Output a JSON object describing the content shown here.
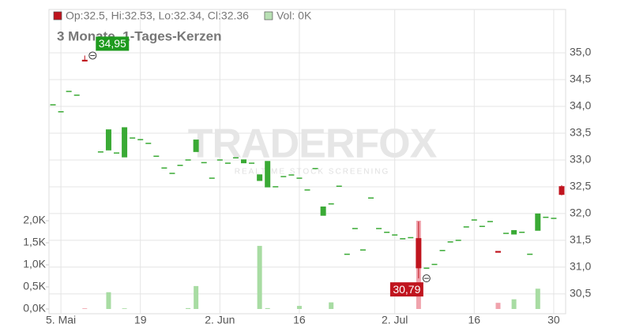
{
  "chart_data": {
    "type": "candlestick",
    "subtitle": "3 Monate, 1-Tages-Kerzen",
    "watermark": "TRADERFOX",
    "watermark_sub": "REALTIME STOCK SCREENING",
    "legend": [
      {
        "label": "Op:32.5, Hi:32.53, Lo:32.34, Cl:32.36",
        "color": "#c0141e"
      },
      {
        "label": "Vol: 0K",
        "color": "#b8e0b4"
      }
    ],
    "categories": [
      null,
      "5. Mai",
      null,
      null,
      null,
      null,
      null,
      null,
      null,
      null,
      null,
      "19",
      null,
      null,
      null,
      null,
      null,
      null,
      null,
      null,
      null,
      "2. Jun",
      null,
      null,
      null,
      null,
      null,
      null,
      null,
      null,
      null,
      "16",
      null,
      null,
      null,
      null,
      null,
      null,
      null,
      null,
      null,
      null,
      null,
      "2. Jul",
      null,
      null,
      null,
      null,
      null,
      null,
      null,
      null,
      null,
      "16",
      null,
      null,
      null,
      null,
      null,
      null,
      null,
      null,
      null,
      "30",
      null
    ],
    "open": [
      34.03,
      33.9,
      34.28,
      34.21,
      34.86,
      null,
      33.15,
      33.19,
      33.13,
      33.06,
      33.41,
      33.38,
      33.31,
      33.07,
      32.85,
      32.75,
      32.9,
      33.0,
      33.16,
      32.95,
      32.66,
      33.0,
      32.94,
      33.04,
      32.95,
      32.94,
      32.62,
      32.5,
      32.5,
      32.69,
      32.72,
      32.66,
      32.44,
      32.84,
      31.97,
      32.18,
      32.51,
      31.24,
      31.72,
      31.32,
      32.29,
      31.72,
      31.65,
      31.6,
      31.53,
      31.55,
      31.53,
      30.98,
      31.05,
      31.31,
      31.47,
      31.5,
      31.75,
      31.88,
      31.76,
      31.85,
      31.29,
      31.63,
      31.62,
      31.65,
      31.24,
      31.69,
      31.93,
      31.91,
      32.5
    ],
    "high": [
      34.03,
      33.9,
      34.28,
      34.21,
      34.95,
      null,
      33.15,
      33.56,
      33.13,
      33.6,
      33.41,
      33.38,
      33.31,
      33.07,
      32.85,
      32.75,
      32.9,
      33.0,
      33.37,
      32.95,
      32.66,
      33.0,
      32.94,
      33.04,
      33.0,
      32.94,
      32.72,
      32.97,
      32.5,
      32.69,
      32.72,
      32.66,
      32.44,
      32.84,
      32.12,
      32.18,
      32.51,
      31.24,
      31.72,
      31.32,
      32.29,
      31.72,
      31.65,
      31.6,
      31.53,
      31.55,
      31.85,
      30.98,
      31.05,
      31.31,
      31.47,
      31.5,
      31.75,
      31.88,
      31.76,
      31.85,
      31.29,
      31.63,
      31.68,
      31.65,
      31.24,
      31.99,
      31.93,
      31.91,
      32.53
    ],
    "low": [
      34.03,
      33.9,
      34.28,
      34.21,
      34.85,
      null,
      33.15,
      33.19,
      33.13,
      33.06,
      33.41,
      33.38,
      33.31,
      33.07,
      32.85,
      32.75,
      32.9,
      33.0,
      33.16,
      32.95,
      32.66,
      33.0,
      32.94,
      33.04,
      32.95,
      32.94,
      32.62,
      32.5,
      32.5,
      32.69,
      32.72,
      32.66,
      32.44,
      32.84,
      31.97,
      32.18,
      32.51,
      31.24,
      31.72,
      31.32,
      32.29,
      31.72,
      31.65,
      31.6,
      31.53,
      31.55,
      30.79,
      30.98,
      31.05,
      31.31,
      31.47,
      31.5,
      31.75,
      31.88,
      31.76,
      31.85,
      31.28,
      31.63,
      31.62,
      31.65,
      31.24,
      31.69,
      31.93,
      31.91,
      32.34
    ],
    "close": [
      34.03,
      33.9,
      34.28,
      34.21,
      34.85,
      null,
      33.15,
      33.56,
      33.13,
      33.6,
      33.41,
      33.38,
      33.31,
      33.07,
      32.85,
      32.75,
      32.9,
      33.0,
      33.37,
      32.95,
      32.66,
      33.0,
      32.94,
      33.04,
      33.0,
      32.94,
      32.72,
      32.97,
      32.5,
      32.69,
      32.72,
      32.66,
      32.44,
      32.84,
      32.12,
      32.18,
      32.51,
      31.24,
      31.72,
      31.32,
      32.29,
      31.72,
      31.65,
      31.6,
      31.53,
      31.55,
      30.99,
      30.98,
      31.05,
      31.31,
      31.47,
      31.5,
      31.75,
      31.88,
      31.76,
      31.85,
      31.28,
      31.63,
      31.68,
      31.65,
      31.24,
      31.99,
      31.93,
      31.91,
      32.36
    ],
    "volume": [
      0,
      0,
      0,
      0,
      15,
      0,
      0,
      380,
      0,
      15,
      0,
      0,
      0,
      0,
      0,
      0,
      0,
      20,
      520,
      0,
      0,
      0,
      0,
      0,
      0,
      0,
      1430,
      20,
      0,
      0,
      0,
      70,
      0,
      0,
      0,
      150,
      0,
      0,
      0,
      0,
      0,
      0,
      0,
      0,
      0,
      0,
      2000,
      0,
      0,
      0,
      0,
      0,
      0,
      0,
      0,
      0,
      140,
      0,
      220,
      0,
      0,
      460,
      0,
      0,
      0
    ],
    "up_color": "#3aaa35",
    "down_color": "#c0141e",
    "volume_up_color": "#a8dca3",
    "volume_down_color": "#f0a3ad",
    "annotations": [
      {
        "index": 4,
        "value": 34.95,
        "label": "34,95",
        "color": "#1e9b1e"
      },
      {
        "index": 46,
        "value": 30.79,
        "label": "30,79",
        "color": "#c0141e"
      }
    ],
    "ylim": [
      30.13,
      35.81
    ],
    "yticks": [
      {
        "value": 30.5,
        "label": "30,5"
      },
      {
        "value": 31,
        "label": "31,0"
      },
      {
        "value": 31.5,
        "label": "31,5"
      },
      {
        "value": 32,
        "label": "32,0"
      },
      {
        "value": 32.5,
        "label": "32,5"
      },
      {
        "value": 33,
        "label": "33,0"
      },
      {
        "value": 33.5,
        "label": "33,5"
      },
      {
        "value": 34,
        "label": "34,0"
      },
      {
        "value": 34.5,
        "label": "34,5"
      },
      {
        "value": 35,
        "label": "35,0"
      }
    ],
    "vlim": [
      0,
      6786
    ],
    "vticks": [
      {
        "value": 0,
        "label": "0,0K"
      },
      {
        "value": 500,
        "label": "0,5K"
      },
      {
        "value": 1000,
        "label": "1,0K"
      },
      {
        "value": 1500,
        "label": "1,5K"
      },
      {
        "value": 2000,
        "label": "2,0K"
      }
    ],
    "grid": true
  }
}
